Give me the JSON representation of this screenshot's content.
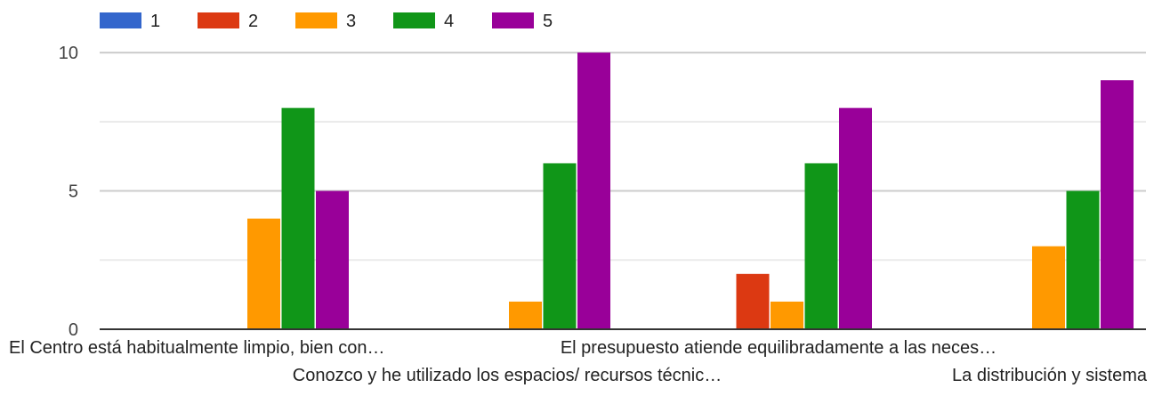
{
  "chart_data": {
    "type": "bar",
    "categories": [
      "El Centro está habitualmente limpio, bien con…",
      "Conozco y he utilizado los espacios/ recursos técnic…",
      "El presupuesto atiende equilibradamente a las neces…",
      "La distribución y sistema"
    ],
    "series": [
      {
        "name": "1",
        "color": "#3366cc",
        "values": [
          0,
          0,
          0,
          0
        ]
      },
      {
        "name": "2",
        "color": "#dc3912",
        "values": [
          0,
          0,
          2,
          0
        ]
      },
      {
        "name": "3",
        "color": "#ff9900",
        "values": [
          4,
          1,
          1,
          3
        ]
      },
      {
        "name": "4",
        "color": "#109618",
        "values": [
          8,
          6,
          6,
          5
        ]
      },
      {
        "name": "5",
        "color": "#990099",
        "values": [
          5,
          10,
          8,
          9
        ]
      }
    ],
    "ylim": [
      0,
      11
    ],
    "yticks": [
      0,
      5,
      10
    ],
    "grid": true,
    "legend_position": "top-left"
  }
}
